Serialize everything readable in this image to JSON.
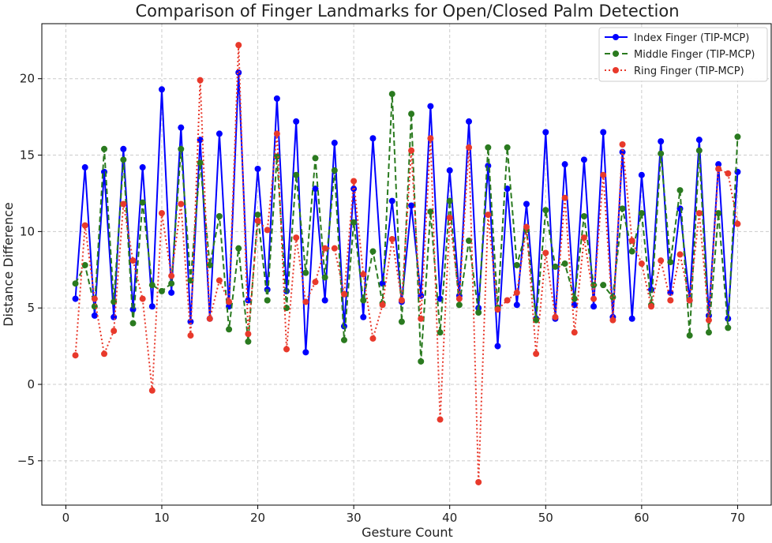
{
  "chart_data": {
    "type": "line",
    "title": "Comparison of Finger Landmarks for Open/Closed Palm Detection",
    "xlabel": "Gesture Count",
    "ylabel": "Distance Difference",
    "xlim": [
      -2.5,
      73.5
    ],
    "ylim": [
      -7.9,
      23.6
    ],
    "xticks": [
      0,
      10,
      20,
      30,
      40,
      50,
      60,
      70
    ],
    "yticks": [
      -5,
      0,
      5,
      10,
      15,
      20
    ],
    "ytick_labels": [
      "−5",
      "0",
      "5",
      "10",
      "15",
      "20"
    ],
    "grid": true,
    "legend_position": "top-right",
    "x": [
      1,
      2,
      3,
      4,
      5,
      6,
      7,
      8,
      9,
      10,
      11,
      12,
      13,
      14,
      15,
      16,
      17,
      18,
      19,
      20,
      21,
      22,
      23,
      24,
      25,
      26,
      27,
      28,
      29,
      30,
      31,
      32,
      33,
      34,
      35,
      36,
      37,
      38,
      39,
      40,
      41,
      42,
      43,
      44,
      45,
      46,
      47,
      48,
      49,
      50,
      51,
      52,
      53,
      54,
      55,
      56,
      57,
      58,
      59,
      60,
      61,
      62,
      63,
      64,
      65,
      66,
      67,
      68,
      69,
      70
    ],
    "series": [
      {
        "name": "Index Finger (TIP-MCP)",
        "color": "#0000ff",
        "line_style": "solid",
        "values": [
          5.6,
          14.2,
          4.5,
          13.9,
          4.4,
          15.4,
          4.9,
          14.2,
          5.1,
          19.3,
          6.0,
          16.8,
          4.1,
          16.0,
          4.3,
          16.4,
          5.1,
          20.4,
          5.5,
          14.1,
          6.2,
          18.7,
          6.1,
          17.2,
          2.1,
          12.8,
          5.5,
          15.8,
          3.8,
          12.8,
          4.4,
          16.1,
          6.6,
          12.0,
          5.4,
          11.7,
          5.8,
          18.2,
          5.6,
          14.0,
          5.8,
          17.2,
          5.0,
          14.3,
          2.5,
          12.8,
          5.2,
          11.8,
          4.3,
          16.5,
          4.3,
          14.4,
          5.2,
          14.7,
          5.1,
          16.5,
          4.4,
          15.2,
          4.3,
          13.7,
          6.2,
          15.9,
          6.0,
          11.5,
          5.5,
          16.0,
          4.5,
          14.4,
          4.3,
          13.9
        ]
      },
      {
        "name": "Middle Finger (TIP-MCP)",
        "color": "#2a7a1f",
        "line_style": "dashed",
        "values": [
          6.6,
          7.8,
          5.1,
          15.4,
          5.4,
          14.7,
          4.0,
          11.9,
          6.5,
          6.1,
          6.6,
          15.4,
          6.8,
          14.5,
          7.8,
          11.0,
          3.6,
          8.9,
          2.8,
          11.1,
          5.5,
          14.9,
          5.0,
          13.7,
          7.3,
          14.8,
          7.0,
          14.0,
          2.9,
          10.6,
          5.5,
          8.7,
          5.3,
          19.0,
          4.1,
          17.7,
          1.5,
          11.3,
          3.4,
          12.0,
          5.2,
          9.4,
          4.7,
          15.5,
          5.0,
          15.5,
          7.8,
          10.1,
          4.2,
          11.4,
          7.7,
          7.9,
          5.6,
          11.0,
          6.5,
          6.5,
          5.7,
          11.5,
          8.7,
          11.2,
          5.2,
          15.1,
          8.0,
          12.7,
          3.2,
          15.3,
          3.4,
          11.2,
          3.7,
          16.2
        ]
      },
      {
        "name": "Ring Finger (TIP-MCP)",
        "color": "#e8392b",
        "line_style": "dotted",
        "values": [
          1.9,
          10.4,
          5.6,
          2.0,
          3.5,
          11.8,
          8.1,
          5.6,
          -0.4,
          11.2,
          7.1,
          11.8,
          3.2,
          19.9,
          4.3,
          6.8,
          5.4,
          22.2,
          3.3,
          10.7,
          10.1,
          16.4,
          2.3,
          9.6,
          5.4,
          6.7,
          8.9,
          8.9,
          5.9,
          13.3,
          7.2,
          3.0,
          5.2,
          9.5,
          5.5,
          15.3,
          4.3,
          16.1,
          -2.3,
          10.9,
          5.6,
          15.5,
          -6.4,
          11.1,
          4.9,
          5.5,
          6.0,
          10.3,
          2.0,
          8.6,
          4.4,
          12.2,
          3.4,
          9.6,
          5.6,
          13.7,
          4.2,
          15.7,
          9.4,
          7.9,
          5.1,
          8.1,
          5.5,
          8.5,
          5.5,
          11.2,
          4.2,
          14.1,
          13.8,
          10.5
        ]
      }
    ]
  }
}
